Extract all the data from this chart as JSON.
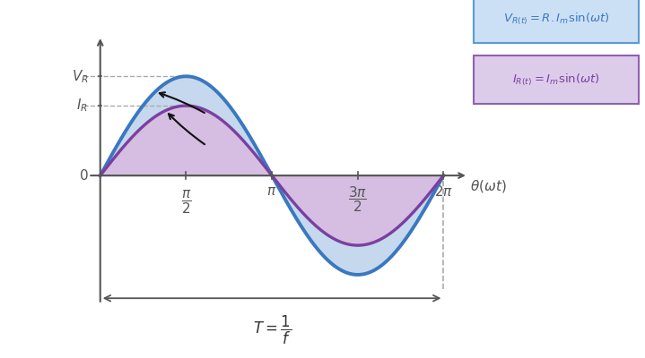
{
  "V_amplitude": 1.35,
  "I_amplitude": 0.95,
  "voltage_color": "#3a78c0",
  "current_color": "#7b3fa0",
  "fill_color_blue": "#c5d8ee",
  "fill_color_purple": "#c8a8d8",
  "bg_color": "#ffffff",
  "legend_box_voltage_color": "#cce0f5",
  "legend_box_current_color": "#dcccea",
  "legend_box_v_edge": "#5b9bd5",
  "legend_box_i_edge": "#9060b0",
  "dashed_color": "#aaaaaa",
  "axis_color": "#555555",
  "tick_label_color": "#555555",
  "arrow_body_color": "#111111"
}
